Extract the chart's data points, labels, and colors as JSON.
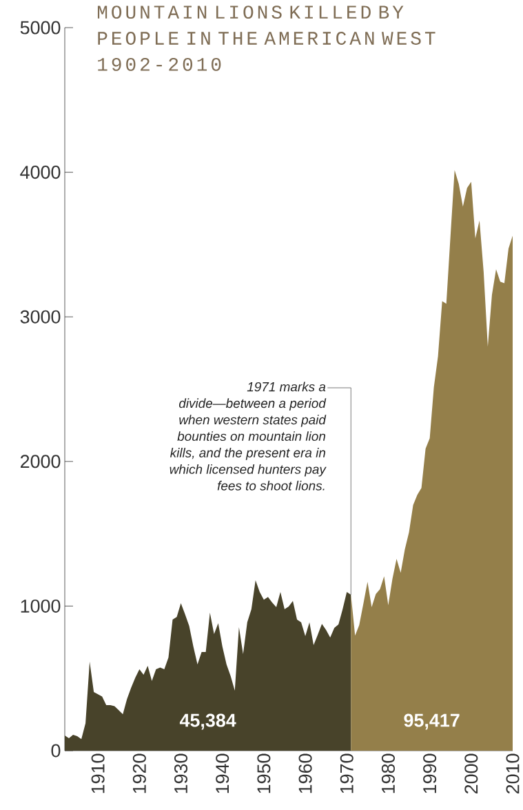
{
  "chart_data": {
    "type": "area",
    "title": "MOUNTAIN LIONS KILLED BY PEOPLE IN THE AMERICAN WEST 1902-2010",
    "xlim": [
      1902,
      2010
    ],
    "xticks": [
      1910,
      1920,
      1930,
      1940,
      1950,
      1960,
      1970,
      1980,
      1990,
      2000,
      2010
    ],
    "ylim": [
      0,
      5000
    ],
    "yticks": [
      0,
      1000,
      2000,
      3000,
      4000,
      5000
    ],
    "series": [
      {
        "color": "#48432a",
        "x": [
          1902,
          1903,
          1904,
          1905,
          1906,
          1907,
          1908,
          1909,
          1910,
          1911,
          1912,
          1913,
          1914,
          1915,
          1916,
          1917,
          1918,
          1919,
          1920,
          1921,
          1922,
          1923,
          1924,
          1925,
          1926,
          1927,
          1928,
          1929,
          1930,
          1931,
          1932,
          1933,
          1934,
          1935,
          1936,
          1937,
          1938,
          1939,
          1940,
          1941,
          1942,
          1943,
          1944,
          1945,
          1946,
          1947,
          1948,
          1949,
          1950,
          1951,
          1952,
          1953,
          1954,
          1955,
          1956,
          1957,
          1958,
          1959,
          1960,
          1961,
          1962,
          1963,
          1964,
          1965,
          1966,
          1967,
          1968,
          1969,
          1970,
          1971
        ],
        "values": [
          105,
          86,
          110,
          100,
          80,
          190,
          615,
          405,
          390,
          375,
          315,
          315,
          308,
          280,
          252,
          357,
          435,
          505,
          563,
          525,
          587,
          482,
          563,
          575,
          563,
          644,
          906,
          925,
          1020,
          944,
          863,
          720,
          596,
          682,
          682,
          954,
          806,
          882,
          720,
          596,
          515,
          415,
          854,
          668,
          887,
          978,
          1178,
          1097,
          1044,
          1063,
          1025,
          992,
          1097,
          978,
          997,
          1035,
          906,
          887,
          792,
          887,
          730,
          801,
          877,
          835,
          782,
          849,
          873,
          978,
          1097,
          1078
        ]
      },
      {
        "color": "#947f4a",
        "x": [
          1971,
          1972,
          1973,
          1974,
          1975,
          1976,
          1977,
          1978,
          1979,
          1980,
          1981,
          1982,
          1983,
          1984,
          1985,
          1986,
          1987,
          1988,
          1989,
          1990,
          1991,
          1992,
          1993,
          1994,
          1995,
          1996,
          1997,
          1998,
          1999,
          2000,
          2001,
          2002,
          2003,
          2004,
          2005,
          2006,
          2007,
          2008,
          2009,
          2010
        ],
        "values": [
          1078,
          796,
          868,
          1016,
          1168,
          992,
          1083,
          1116,
          1206,
          1006,
          1187,
          1326,
          1230,
          1392,
          1510,
          1698,
          1769,
          1817,
          2089,
          2160,
          2513,
          2728,
          3109,
          3090,
          3557,
          4015,
          3920,
          3762,
          3891,
          3934,
          3543,
          3667,
          3310,
          2794,
          3152,
          3329,
          3243,
          3233,
          3472,
          3562
        ]
      }
    ],
    "annotations": [
      {
        "text": "1971 marks a divide—between a period when western states paid bounties on mountain lion kills, and the present era in which licensed hunters pay fees to shoot lions.",
        "x": 1971,
        "y": 1078
      },
      "45,384",
      "95,417"
    ]
  }
}
